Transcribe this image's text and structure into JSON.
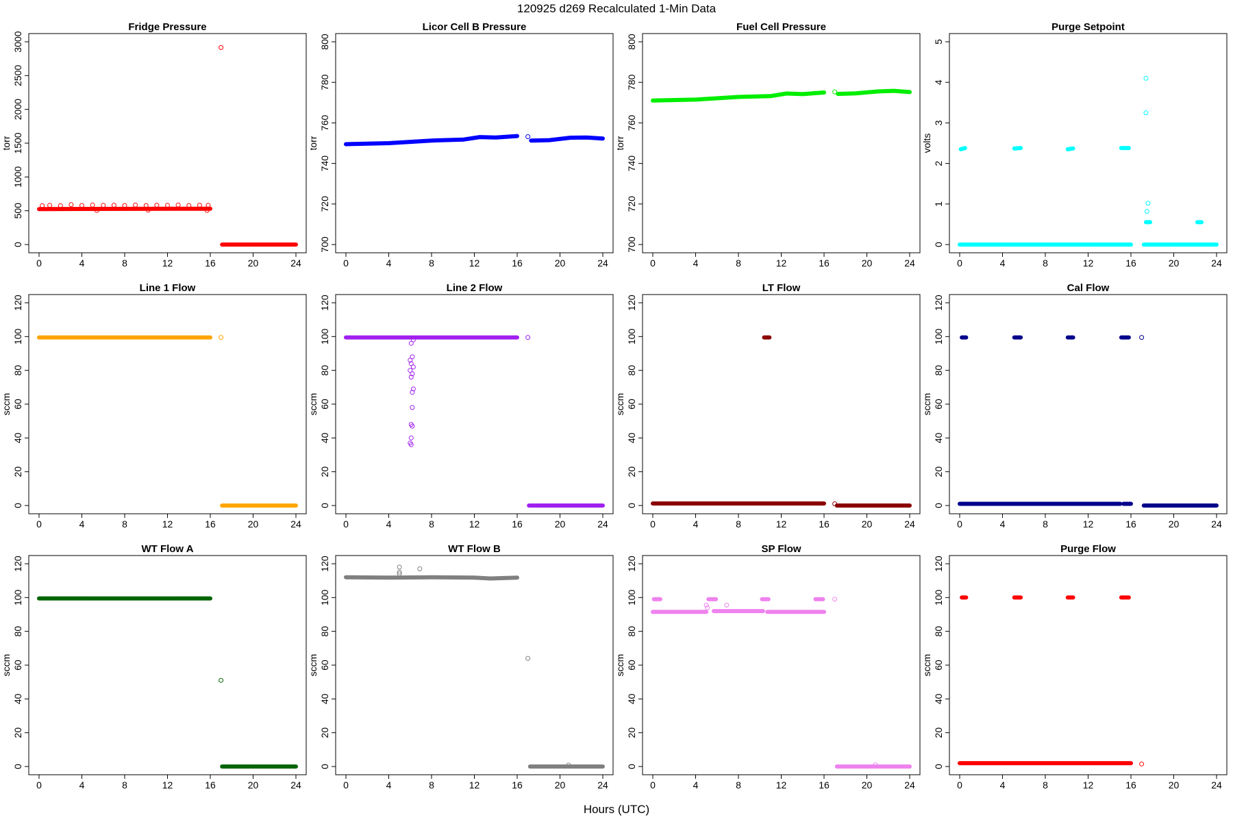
{
  "figure": {
    "title": "120925   d269   Recalculated 1-Min Data",
    "xlabel": "Hours (UTC)"
  },
  "chart_data": [
    {
      "type": "scatter",
      "title": "Fridge Pressure",
      "ylabel": "torr",
      "color": "#ff0000",
      "xlim": [
        0,
        24
      ],
      "ylim": [
        0,
        3000
      ],
      "xticks": [
        0,
        4,
        8,
        12,
        16,
        20,
        24
      ],
      "yticks": [
        0,
        500,
        1000,
        1500,
        2000,
        2500,
        3000
      ],
      "segments": [
        {
          "x": [
            0,
            16
          ],
          "y": [
            525,
            530
          ]
        },
        {
          "x": [
            17.1,
            24
          ],
          "y": [
            0,
            0
          ]
        }
      ],
      "points": [
        [
          0.3,
          575
        ],
        [
          1,
          580
        ],
        [
          2,
          575
        ],
        [
          3,
          590
        ],
        [
          4,
          578
        ],
        [
          5,
          585
        ],
        [
          6,
          580
        ],
        [
          7,
          582
        ],
        [
          8,
          578
        ],
        [
          9,
          585
        ],
        [
          10,
          578
        ],
        [
          11,
          582
        ],
        [
          12,
          580
        ],
        [
          13,
          586
        ],
        [
          14,
          578
        ],
        [
          15,
          582
        ],
        [
          15.8,
          580
        ],
        [
          5.4,
          505
        ],
        [
          10.2,
          510
        ],
        [
          15.7,
          505
        ],
        [
          17,
          2915
        ]
      ]
    },
    {
      "type": "scatter",
      "title": "Licor Cell B Pressure",
      "ylabel": "torr",
      "color": "#0000ff",
      "xlim": [
        0,
        24
      ],
      "ylim": [
        700,
        800
      ],
      "xticks": [
        0,
        4,
        8,
        12,
        16,
        20,
        24
      ],
      "yticks": [
        700,
        720,
        740,
        760,
        780,
        800
      ],
      "segments": [
        {
          "x": [
            0,
            4,
            8,
            11,
            12.5,
            14,
            16
          ],
          "y": [
            749.5,
            750,
            751.3,
            751.8,
            753,
            752.8,
            753.5
          ]
        },
        {
          "x": [
            17.3,
            19,
            21,
            22.5,
            24
          ],
          "y": [
            751.3,
            751.5,
            752.7,
            752.8,
            752.3
          ]
        }
      ],
      "points": [
        [
          17,
          753.2
        ]
      ]
    },
    {
      "type": "scatter",
      "title": "Fuel Cell Pressure",
      "ylabel": "torr",
      "color": "#00ee00",
      "xlim": [
        0,
        24
      ],
      "ylim": [
        700,
        800
      ],
      "xticks": [
        0,
        4,
        8,
        12,
        16,
        20,
        24
      ],
      "yticks": [
        700,
        720,
        740,
        760,
        780,
        800
      ],
      "segments": [
        {
          "x": [
            0,
            4,
            8,
            11,
            12.5,
            14,
            16
          ],
          "y": [
            771,
            771.5,
            772.8,
            773.2,
            774.5,
            774.2,
            775
          ]
        },
        {
          "x": [
            17.3,
            19,
            21,
            22.5,
            24
          ],
          "y": [
            774.3,
            774.6,
            775.5,
            775.8,
            775.2
          ]
        }
      ],
      "points": [
        [
          17,
          775.3
        ]
      ]
    },
    {
      "type": "scatter",
      "title": "Purge Setpoint",
      "ylabel": "volts",
      "color": "#00ffff",
      "xlim": [
        0,
        24
      ],
      "ylim": [
        0,
        5
      ],
      "xticks": [
        0,
        4,
        8,
        12,
        16,
        20,
        24
      ],
      "yticks": [
        0,
        1,
        2,
        3,
        4,
        5
      ],
      "segments": [
        {
          "x": [
            0,
            16
          ],
          "y": [
            0,
            0
          ]
        },
        {
          "x": [
            17.2,
            24
          ],
          "y": [
            0,
            0
          ]
        },
        {
          "x": [
            0.1,
            0.5
          ],
          "y": [
            2.35,
            2.38
          ]
        },
        {
          "x": [
            5.1,
            5.7
          ],
          "y": [
            2.37,
            2.38
          ]
        },
        {
          "x": [
            10.1,
            10.6
          ],
          "y": [
            2.35,
            2.37
          ]
        },
        {
          "x": [
            15.1,
            15.8
          ],
          "y": [
            2.38,
            2.38
          ]
        },
        {
          "x": [
            17.4,
            17.8
          ],
          "y": [
            0.55,
            0.55
          ]
        },
        {
          "x": [
            22.2,
            22.6
          ],
          "y": [
            0.55,
            0.55
          ]
        }
      ],
      "points": [
        [
          17.4,
          4.1
        ],
        [
          17.4,
          3.25
        ],
        [
          17.6,
          1.02
        ],
        [
          17.5,
          0.82
        ]
      ]
    },
    {
      "type": "scatter",
      "title": "Line 1 Flow",
      "ylabel": "sccm",
      "color": "#ffa500",
      "xlim": [
        0,
        24
      ],
      "ylim": [
        0,
        120
      ],
      "xticks": [
        0,
        4,
        8,
        12,
        16,
        20,
        24
      ],
      "yticks": [
        0,
        20,
        40,
        60,
        80,
        100,
        120
      ],
      "segments": [
        {
          "x": [
            0,
            16
          ],
          "y": [
            99.5,
            99.5
          ]
        },
        {
          "x": [
            17.1,
            24
          ],
          "y": [
            0,
            0
          ]
        }
      ],
      "points": [
        [
          17,
          99.5
        ]
      ]
    },
    {
      "type": "scatter",
      "title": "Line 2 Flow",
      "ylabel": "sccm",
      "color": "#a020f0",
      "xlim": [
        0,
        24
      ],
      "ylim": [
        0,
        120
      ],
      "xticks": [
        0,
        4,
        8,
        12,
        16,
        20,
        24
      ],
      "yticks": [
        0,
        20,
        40,
        60,
        80,
        100,
        120
      ],
      "segments": [
        {
          "x": [
            0,
            16
          ],
          "y": [
            99.5,
            99.5
          ]
        },
        {
          "x": [
            17.1,
            24
          ],
          "y": [
            0,
            0
          ]
        }
      ],
      "points": [
        [
          6.1,
          96
        ],
        [
          6.3,
          98
        ],
        [
          6,
          86
        ],
        [
          6.2,
          88
        ],
        [
          6.1,
          84
        ],
        [
          6.3,
          82
        ],
        [
          6,
          80
        ],
        [
          6.2,
          78
        ],
        [
          6.1,
          76
        ],
        [
          6.3,
          69
        ],
        [
          6.2,
          67
        ],
        [
          6.2,
          58
        ],
        [
          6.1,
          48
        ],
        [
          6.2,
          47
        ],
        [
          6.1,
          40
        ],
        [
          6,
          37
        ],
        [
          6.1,
          36
        ],
        [
          17,
          99.5
        ]
      ]
    },
    {
      "type": "scatter",
      "title": "LT Flow",
      "ylabel": "sccm",
      "color": "#8b0000",
      "xlim": [
        0,
        24
      ],
      "ylim": [
        0,
        120
      ],
      "xticks": [
        0,
        4,
        8,
        12,
        16,
        20,
        24
      ],
      "yticks": [
        0,
        20,
        40,
        60,
        80,
        100,
        120
      ],
      "segments": [
        {
          "x": [
            0,
            16
          ],
          "y": [
            1.2,
            1.2
          ]
        },
        {
          "x": [
            17.2,
            24
          ],
          "y": [
            0,
            0
          ]
        },
        {
          "x": [
            10.4,
            10.9
          ],
          "y": [
            99.5,
            99.5
          ]
        }
      ],
      "points": [
        [
          17,
          1
        ]
      ]
    },
    {
      "type": "scatter",
      "title": "Cal Flow",
      "ylabel": "sccm",
      "color": "#00008b",
      "xlim": [
        0,
        24
      ],
      "ylim": [
        0,
        120
      ],
      "xticks": [
        0,
        4,
        8,
        12,
        16,
        20,
        24
      ],
      "yticks": [
        0,
        20,
        40,
        60,
        80,
        100,
        120
      ],
      "segments": [
        {
          "x": [
            0,
            15
          ],
          "y": [
            1,
            1
          ]
        },
        {
          "x": [
            15.3,
            16
          ],
          "y": [
            1,
            1
          ]
        },
        {
          "x": [
            17.2,
            24
          ],
          "y": [
            0,
            0
          ]
        },
        {
          "x": [
            0.2,
            0.6
          ],
          "y": [
            99.5,
            99.5
          ]
        },
        {
          "x": [
            5.1,
            5.7
          ],
          "y": [
            99.5,
            99.5
          ]
        },
        {
          "x": [
            10.1,
            10.6
          ],
          "y": [
            99.5,
            99.5
          ]
        },
        {
          "x": [
            15.1,
            15.8
          ],
          "y": [
            99.5,
            99.5
          ]
        }
      ],
      "points": [
        [
          17,
          99.5
        ]
      ]
    },
    {
      "type": "scatter",
      "title": "WT Flow A",
      "ylabel": "sccm",
      "color": "#006400",
      "xlim": [
        0,
        24
      ],
      "ylim": [
        0,
        120
      ],
      "xticks": [
        0,
        4,
        8,
        12,
        16,
        20,
        24
      ],
      "yticks": [
        0,
        20,
        40,
        60,
        80,
        100,
        120
      ],
      "segments": [
        {
          "x": [
            0,
            16
          ],
          "y": [
            99.5,
            99.5
          ]
        },
        {
          "x": [
            17.1,
            24
          ],
          "y": [
            0,
            0
          ]
        }
      ],
      "points": [
        [
          17,
          51
        ]
      ]
    },
    {
      "type": "scatter",
      "title": "WT Flow B",
      "ylabel": "sccm",
      "color": "#808080",
      "xlim": [
        0,
        24
      ],
      "ylim": [
        0,
        120
      ],
      "xticks": [
        0,
        4,
        8,
        12,
        16,
        20,
        24
      ],
      "yticks": [
        0,
        20,
        40,
        60,
        80,
        100,
        120
      ],
      "segments": [
        {
          "x": [
            0,
            4,
            8,
            12,
            13.5,
            16
          ],
          "y": [
            112,
            111.8,
            112,
            111.8,
            111.3,
            111.8
          ]
        },
        {
          "x": [
            17.2,
            24
          ],
          "y": [
            0,
            0
          ]
        }
      ],
      "points": [
        [
          5,
          118
        ],
        [
          5,
          115
        ],
        [
          5,
          114
        ],
        [
          6.9,
          117
        ],
        [
          17,
          64
        ],
        [
          20.8,
          0.8
        ]
      ]
    },
    {
      "type": "scatter",
      "title": "SP Flow",
      "ylabel": "sccm",
      "color": "#ee82ee",
      "xlim": [
        0,
        24
      ],
      "ylim": [
        0,
        120
      ],
      "xticks": [
        0,
        4,
        8,
        12,
        16,
        20,
        24
      ],
      "yticks": [
        0,
        20,
        40,
        60,
        80,
        100,
        120
      ],
      "segments": [
        {
          "x": [
            0,
            5
          ],
          "y": [
            91.5,
            91.5
          ]
        },
        {
          "x": [
            5.7,
            10.3
          ],
          "y": [
            92,
            92
          ]
        },
        {
          "x": [
            10.7,
            16
          ],
          "y": [
            91.5,
            91.5
          ]
        },
        {
          "x": [
            17.2,
            24
          ],
          "y": [
            0,
            0
          ]
        },
        {
          "x": [
            0.1,
            0.7
          ],
          "y": [
            99,
            99
          ]
        },
        {
          "x": [
            5.2,
            5.9
          ],
          "y": [
            99,
            99
          ]
        },
        {
          "x": [
            10.2,
            10.8
          ],
          "y": [
            99,
            99
          ]
        },
        {
          "x": [
            15.2,
            15.9
          ],
          "y": [
            99,
            99
          ]
        }
      ],
      "points": [
        [
          5,
          95.5
        ],
        [
          5.1,
          94
        ],
        [
          6.9,
          95.5
        ],
        [
          17,
          99
        ],
        [
          20.8,
          1
        ]
      ]
    },
    {
      "type": "scatter",
      "title": "Purge Flow",
      "ylabel": "sccm",
      "color": "#ff0000",
      "xlim": [
        0,
        24
      ],
      "ylim": [
        0,
        120
      ],
      "xticks": [
        0,
        4,
        8,
        12,
        16,
        20,
        24
      ],
      "yticks": [
        0,
        20,
        40,
        60,
        80,
        100,
        120
      ],
      "segments": [
        {
          "x": [
            0,
            16
          ],
          "y": [
            2,
            2
          ]
        },
        {
          "x": [
            0.2,
            0.6
          ],
          "y": [
            100,
            100
          ]
        },
        {
          "x": [
            5.1,
            5.7
          ],
          "y": [
            100,
            100
          ]
        },
        {
          "x": [
            10.1,
            10.6
          ],
          "y": [
            100,
            100
          ]
        },
        {
          "x": [
            15.1,
            15.8
          ],
          "y": [
            100,
            100
          ]
        }
      ],
      "points": [
        [
          17,
          1.5
        ]
      ]
    }
  ]
}
